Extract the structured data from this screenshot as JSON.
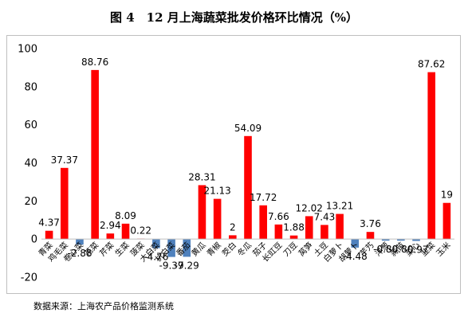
{
  "title": "图 4　12 月上海蔬菜批发价格环比情况（%）",
  "source": "数据来源：上海农产品价格监测系统",
  "chart_data": {
    "type": "bar",
    "title": "图 4　12 月上海蔬菜批发价格环比情况（%）",
    "xlabel": "",
    "ylabel": "",
    "ylim": [
      -20,
      100
    ],
    "yticks": [
      -20,
      0,
      20,
      40,
      60,
      80,
      100
    ],
    "grid": false,
    "legend": "none",
    "colors": {
      "positive": "#ff0000",
      "negative": "#4f81bd"
    },
    "categories": [
      "青菜",
      "鸡毛菜",
      "卷心菜",
      "花菜",
      "芹菜",
      "生菜",
      "菠菜",
      "大白菜",
      "杭白菜",
      "番茄",
      "黄瓜",
      "青椒",
      "茭白",
      "冬瓜",
      "茄子",
      "长豇豆",
      "刀豆",
      "莴笋",
      "土豆",
      "白萝卜",
      "胡萝卜",
      "芋艿",
      "洋葱",
      "蒜苗",
      "菜心",
      "韭菜",
      "玉米"
    ],
    "values": [
      4.37,
      37.37,
      -2.88,
      88.76,
      2.94,
      8.09,
      0.22,
      -4.76,
      -9.37,
      -9.29,
      28.31,
      21.13,
      2,
      54.09,
      17.72,
      7.66,
      1.88,
      12.02,
      7.43,
      13.21,
      -4.48,
      3.76,
      -0.8,
      -0.8,
      -0.97,
      87.62,
      19
    ],
    "data_labels": [
      "4.37",
      "37.37",
      "-2.88",
      "88.76",
      "2.94",
      "8.09",
      "0.22",
      "-4.76",
      "-9.37",
      "-9.29",
      "28.31",
      "21.13",
      "2",
      "54.09",
      "17.72",
      "7.66",
      "1.88",
      "12.02",
      "7.43",
      "13.21",
      "-4.48",
      "3.76",
      "-0.80",
      "-0.80",
      "-0.97",
      "87.62",
      "19"
    ]
  }
}
